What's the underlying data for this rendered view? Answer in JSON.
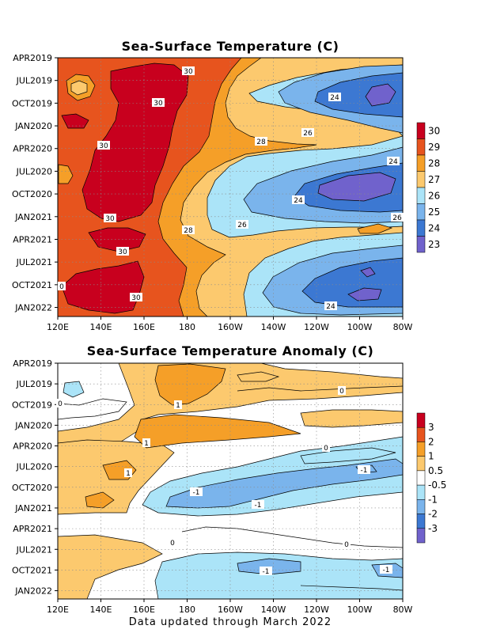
{
  "footer": "Data updated through March 2022",
  "chart_data": [
    {
      "type": "heatmap",
      "title": "Sea-Surface Temperature (C)",
      "xlabel": "",
      "ylabel": "",
      "x_ticks": [
        "120E",
        "140E",
        "160E",
        "180",
        "160W",
        "140W",
        "120W",
        "100W",
        "80W"
      ],
      "y_ticks": [
        "APR2019",
        "JUL2019",
        "OCT2019",
        "JAN2020",
        "APR2020",
        "JUL2020",
        "OCT2020",
        "JAN2021",
        "APR2021",
        "JUL2021",
        "OCT2021",
        "JAN2022"
      ],
      "grid": true,
      "colorbar": {
        "levels": [
          "30",
          "29",
          "28",
          "27",
          "26",
          "25",
          "24",
          "23"
        ],
        "colors": [
          "#c8001e",
          "#e7541e",
          "#f59f28",
          "#fcc96e",
          "#abe4f8",
          "#7ab4ec",
          "#3c78d2",
          "#7062cc"
        ]
      },
      "contour_labels": [
        "30",
        "30",
        "30",
        "30",
        "30",
        "30",
        "28",
        "28",
        "26",
        "26",
        "24",
        "24",
        "24",
        "24",
        "26",
        "0"
      ]
    },
    {
      "type": "heatmap",
      "title": "Sea-Surface Temperature Anomaly (C)",
      "xlabel": "",
      "ylabel": "",
      "x_ticks": [
        "120E",
        "140E",
        "160E",
        "180",
        "160W",
        "140W",
        "120W",
        "100W",
        "80W"
      ],
      "y_ticks": [
        "APR2019",
        "JUL2019",
        "OCT2019",
        "JAN2020",
        "APR2020",
        "JUL2020",
        "OCT2020",
        "JAN2021",
        "APR2021",
        "JUL2021",
        "OCT2021",
        "JAN2022"
      ],
      "grid": true,
      "colorbar": {
        "levels": [
          "3",
          "2",
          "1",
          "0.5",
          "-0.5",
          "-1",
          "-2",
          "-3"
        ],
        "colors": [
          "#c8001e",
          "#e7541e",
          "#f59f28",
          "#fcc96e",
          "#ffffff",
          "#abe4f8",
          "#7ab4ec",
          "#3c78d2",
          "#7062cc"
        ]
      },
      "contour_labels": [
        "1",
        "1",
        "1",
        "0",
        "0",
        "0",
        "0",
        "-1",
        "-1",
        "-1",
        "-1",
        "-1",
        "0"
      ]
    }
  ]
}
